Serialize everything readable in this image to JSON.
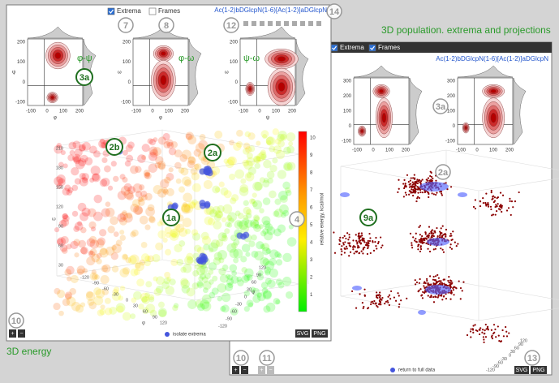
{
  "captions": {
    "right": "3D population. extrema and projections",
    "left": "3D energy"
  },
  "left_panel": {
    "checkboxes": [
      "Extrema",
      "Frames"
    ],
    "molecule": "Ac(1-2)bDGlcpN(1-6)[Ac(1-2)]aDGlcpN",
    "projections": [
      "φ-ψ",
      "φ-ω",
      "ψ-ω"
    ],
    "proj_yticks": [
      "200",
      "100",
      "0",
      "-100"
    ],
    "proj_xticks": [
      "-100",
      "0",
      "100",
      "200"
    ],
    "axis_labels": [
      "φ",
      "ψ",
      "ω"
    ],
    "colorbar_ticks": [
      "10",
      "9",
      "8",
      "7",
      "6",
      "5",
      "4",
      "3",
      "2",
      "1"
    ],
    "colorbar_label": "relative energy, kcal/mol",
    "cube_left": [
      "210",
      "180",
      "150",
      "120",
      "90",
      "60",
      "30"
    ],
    "cube_front": [
      "-120",
      "-90",
      "-60",
      "-30",
      "0",
      "30",
      "60",
      "90",
      "120"
    ],
    "cube_right": [
      "120",
      "90",
      "60",
      "30",
      "0",
      "-30",
      "-60",
      "-90",
      "-120"
    ],
    "legend": "isolate extrema",
    "zoom_buttons": [
      "+",
      "−"
    ],
    "export_buttons": [
      "SVG",
      "PNG"
    ]
  },
  "right_panel": {
    "checkboxes": [
      "Extrema",
      "Frames"
    ],
    "molecule": "Ac(1-2)bDGlcpN(1-6)[Ac(1-2)]aDGlcpN",
    "proj_yticks": [
      "300",
      "200",
      "100",
      "0",
      "-100"
    ],
    "proj_xticks": [
      "-100",
      "0",
      "100",
      "200"
    ],
    "legend": "return to full data",
    "zoom_buttons": [
      "+",
      "−"
    ],
    "export_buttons": [
      "SVG",
      "PNG"
    ]
  },
  "callouts": {
    "gray": [
      "7",
      "8",
      "12",
      "14",
      "4",
      "10",
      "3a",
      "2a",
      "10",
      "11",
      "13"
    ],
    "green": [
      "3a",
      "2b",
      "2a",
      "1a",
      "9a"
    ]
  }
}
